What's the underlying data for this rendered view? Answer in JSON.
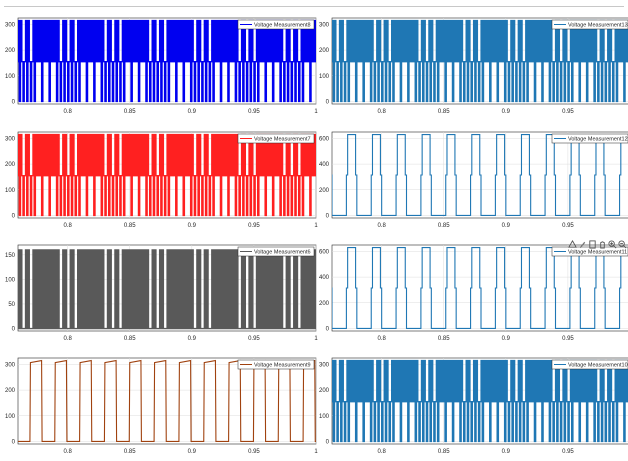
{
  "chart_data": [
    {
      "type": "line",
      "id": "p1",
      "legend": "Voltage Measurement8",
      "color": "#0000f0",
      "xlim": [
        0.76,
        1.0
      ],
      "ylim": [
        -10,
        325
      ],
      "yticks": [
        0,
        100,
        200,
        300
      ],
      "xticks": [
        0.8,
        0.85,
        0.9,
        0.95,
        1.0
      ],
      "xtick_labels": [
        "0.8",
        "0.85",
        "0.9",
        "0.95",
        "1"
      ],
      "waveform": "dense",
      "period": 0.006,
      "low": 0,
      "mid": 155,
      "high": 315
    },
    {
      "type": "line",
      "id": "p2",
      "legend": "Voltage Measurement13",
      "color": "#1f77b4",
      "xlim": [
        0.76,
        1.0
      ],
      "ylim": [
        -10,
        325
      ],
      "yticks": [
        0,
        100,
        200,
        300
      ],
      "xticks": [
        0.8,
        0.85,
        0.9,
        0.95
      ],
      "xtick_labels": [
        "0.8",
        "0.85",
        "0.9",
        "0.95"
      ],
      "waveform": "dense",
      "period": 0.006,
      "low": 0,
      "mid": 155,
      "high": 315
    },
    {
      "type": "line",
      "id": "p3",
      "legend": "Voltage Measurement7",
      "color": "#ff2020",
      "xlim": [
        0.76,
        1.0
      ],
      "ylim": [
        -10,
        325
      ],
      "yticks": [
        0,
        100,
        200,
        300
      ],
      "xticks": [
        0.8,
        0.85,
        0.9,
        0.95,
        1.0
      ],
      "xtick_labels": [
        "0.8",
        "0.85",
        "0.9",
        "0.95",
        "1"
      ],
      "waveform": "dense",
      "period": 0.006,
      "low": 0,
      "mid": 155,
      "high": 315
    },
    {
      "type": "line",
      "id": "p4",
      "legend": "Voltage Measurement12",
      "color": "#1f77b4",
      "xlim": [
        0.76,
        1.0
      ],
      "ylim": [
        -20,
        650
      ],
      "yticks": [
        0,
        200,
        400,
        600
      ],
      "xticks": [
        0.8,
        0.85,
        0.9,
        0.95
      ],
      "xtick_labels": [
        "0.8",
        "0.85",
        "0.9",
        "0.95"
      ],
      "waveform": "stepped",
      "period": 0.02,
      "low": 0,
      "mid": 315,
      "high": 630
    },
    {
      "type": "line",
      "id": "p5",
      "legend": "Voltage Measurement6",
      "color": "#595959",
      "xlim": [
        0.76,
        1.0
      ],
      "ylim": [
        -5,
        170
      ],
      "yticks": [
        0,
        50,
        100,
        150
      ],
      "xticks": [
        0.8,
        0.85,
        0.9,
        0.95,
        1.0
      ],
      "xtick_labels": [
        "0.8",
        "0.85",
        "0.9",
        "0.95",
        "1"
      ],
      "waveform": "dense",
      "period": 0.006,
      "low": 0,
      "mid": 0,
      "high": 160
    },
    {
      "type": "line",
      "id": "p6",
      "legend": "Voltage Measurement11",
      "color": "#1f77b4",
      "xlim": [
        0.76,
        1.0
      ],
      "ylim": [
        -20,
        650
      ],
      "yticks": [
        0,
        200,
        400,
        600
      ],
      "xticks": [
        0.8,
        0.85,
        0.9,
        0.95
      ],
      "xtick_labels": [
        "0.8",
        "0.85",
        "0.9",
        "0.95"
      ],
      "waveform": "stepped",
      "period": 0.02,
      "low": 0,
      "mid": 315,
      "high": 630
    },
    {
      "type": "line",
      "id": "p7",
      "legend": "Voltage Measurement9",
      "color": "#a0420f",
      "xlim": [
        0.76,
        1.0
      ],
      "ylim": [
        -10,
        325
      ],
      "yticks": [
        0,
        100,
        200,
        300
      ],
      "xticks": [
        0.8,
        0.85,
        0.9,
        0.95,
        1.0
      ],
      "xtick_labels": [
        "0.8",
        "0.85",
        "0.9",
        "0.95",
        "1"
      ],
      "waveform": "square",
      "period": 0.02,
      "low": 0,
      "mid": 0,
      "high": 315
    },
    {
      "type": "line",
      "id": "p8",
      "legend": "Voltage Measurement10",
      "color": "#1f77b4",
      "xlim": [
        0.76,
        1.0
      ],
      "ylim": [
        -10,
        325
      ],
      "yticks": [
        0,
        100,
        200,
        300
      ],
      "xticks": [
        0.8,
        0.85,
        0.9,
        0.95
      ],
      "xtick_labels": [
        "0.8",
        "0.85",
        "0.9",
        "0.95"
      ],
      "waveform": "dense",
      "period": 0.006,
      "low": 0,
      "mid": 155,
      "high": 315
    }
  ],
  "toolbar": {
    "icons": [
      "export-icon",
      "brush-icon",
      "data-tips-icon",
      "pan-icon",
      "zoom-in-icon",
      "zoom-out-icon",
      "home-icon"
    ]
  }
}
